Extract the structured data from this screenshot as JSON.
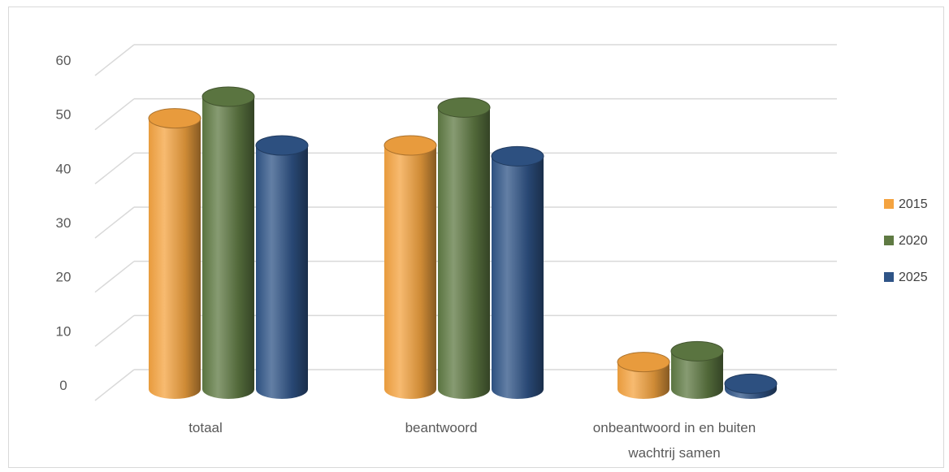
{
  "chart_data": {
    "type": "bar",
    "title": "",
    "xlabel": "",
    "ylabel": "",
    "categories": [
      "totaal",
      "beantwoord",
      "onbeantwoord in en buiten wachtrij samen"
    ],
    "series": [
      {
        "name": "2015",
        "values": [
          50,
          45,
          5
        ],
        "color": "#f4a340"
      },
      {
        "name": "2020",
        "values": [
          54,
          52,
          7
        ],
        "color": "#5f7a43"
      },
      {
        "name": "2025",
        "values": [
          45,
          43,
          1
        ],
        "color": "#2f5487"
      }
    ],
    "ylim": [
      0,
      60
    ],
    "yticks": [
      0,
      10,
      20,
      30,
      40,
      50,
      60
    ],
    "grid": true,
    "legend_position": "right",
    "style": "3d-cylinder"
  }
}
